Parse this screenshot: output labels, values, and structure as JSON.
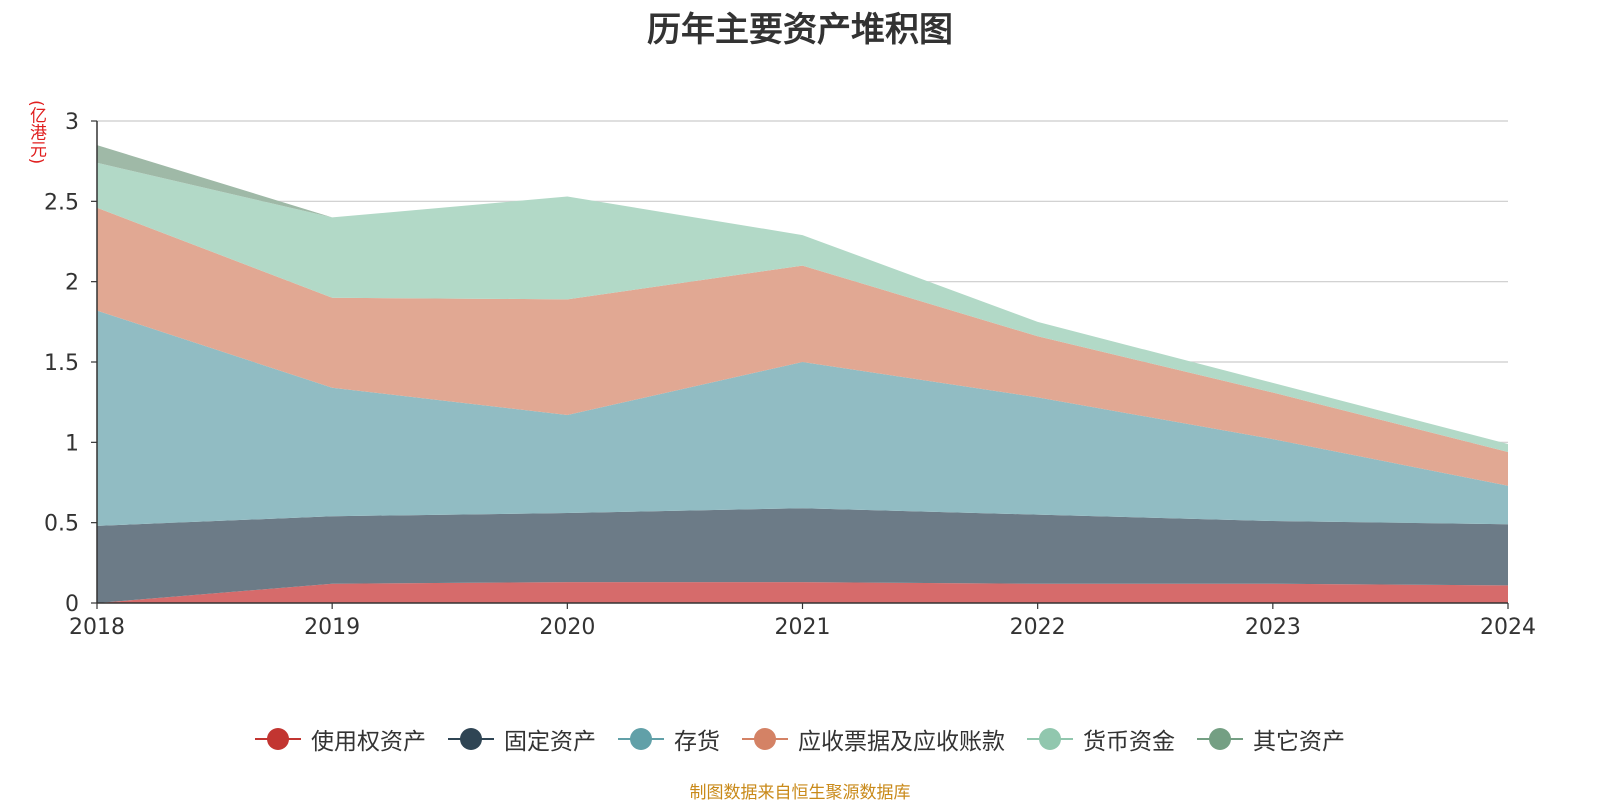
{
  "chart_data": {
    "type": "area",
    "stacked": true,
    "title": "历年主要资产堆积图",
    "y_unit_label": "(亿港元)",
    "x": [
      "2018",
      "2019",
      "2020",
      "2021",
      "2022",
      "2023",
      "2024"
    ],
    "ylim": [
      0,
      3
    ],
    "yticks": [
      "0",
      "0.5",
      "1",
      "1.5",
      "2",
      "2.5",
      "3"
    ],
    "grid": true,
    "legend_position": "bottom",
    "series": [
      {
        "name": "使用权资产",
        "color": "#c23531",
        "fill": "#d66b6b",
        "values": [
          0.0,
          0.12,
          0.13,
          0.13,
          0.12,
          0.12,
          0.11
        ]
      },
      {
        "name": "固定资产",
        "color": "#2f4554",
        "fill": "#6c7b87",
        "values": [
          0.48,
          0.42,
          0.43,
          0.46,
          0.43,
          0.39,
          0.38
        ]
      },
      {
        "name": "存货",
        "color": "#61a0a8",
        "fill": "#91bcc3",
        "values": [
          1.34,
          0.8,
          0.61,
          0.91,
          0.73,
          0.51,
          0.24
        ]
      },
      {
        "name": "应收票据及应收账款",
        "color": "#d48265",
        "fill": "#e1a893",
        "values": [
          0.64,
          0.56,
          0.72,
          0.6,
          0.38,
          0.29,
          0.21
        ]
      },
      {
        "name": "货币资金",
        "color": "#91c7ae",
        "fill": "#b2d9c7",
        "values": [
          0.28,
          0.5,
          0.64,
          0.19,
          0.09,
          0.06,
          0.05
        ]
      },
      {
        "name": "其它资产",
        "color": "#749f83",
        "fill": "#9fb9a7",
        "values": [
          0.11,
          0.0,
          0.0,
          0.0,
          0.0,
          0.0,
          0.0
        ]
      }
    ]
  },
  "source_note": "制图数据来自恒生聚源数据库"
}
